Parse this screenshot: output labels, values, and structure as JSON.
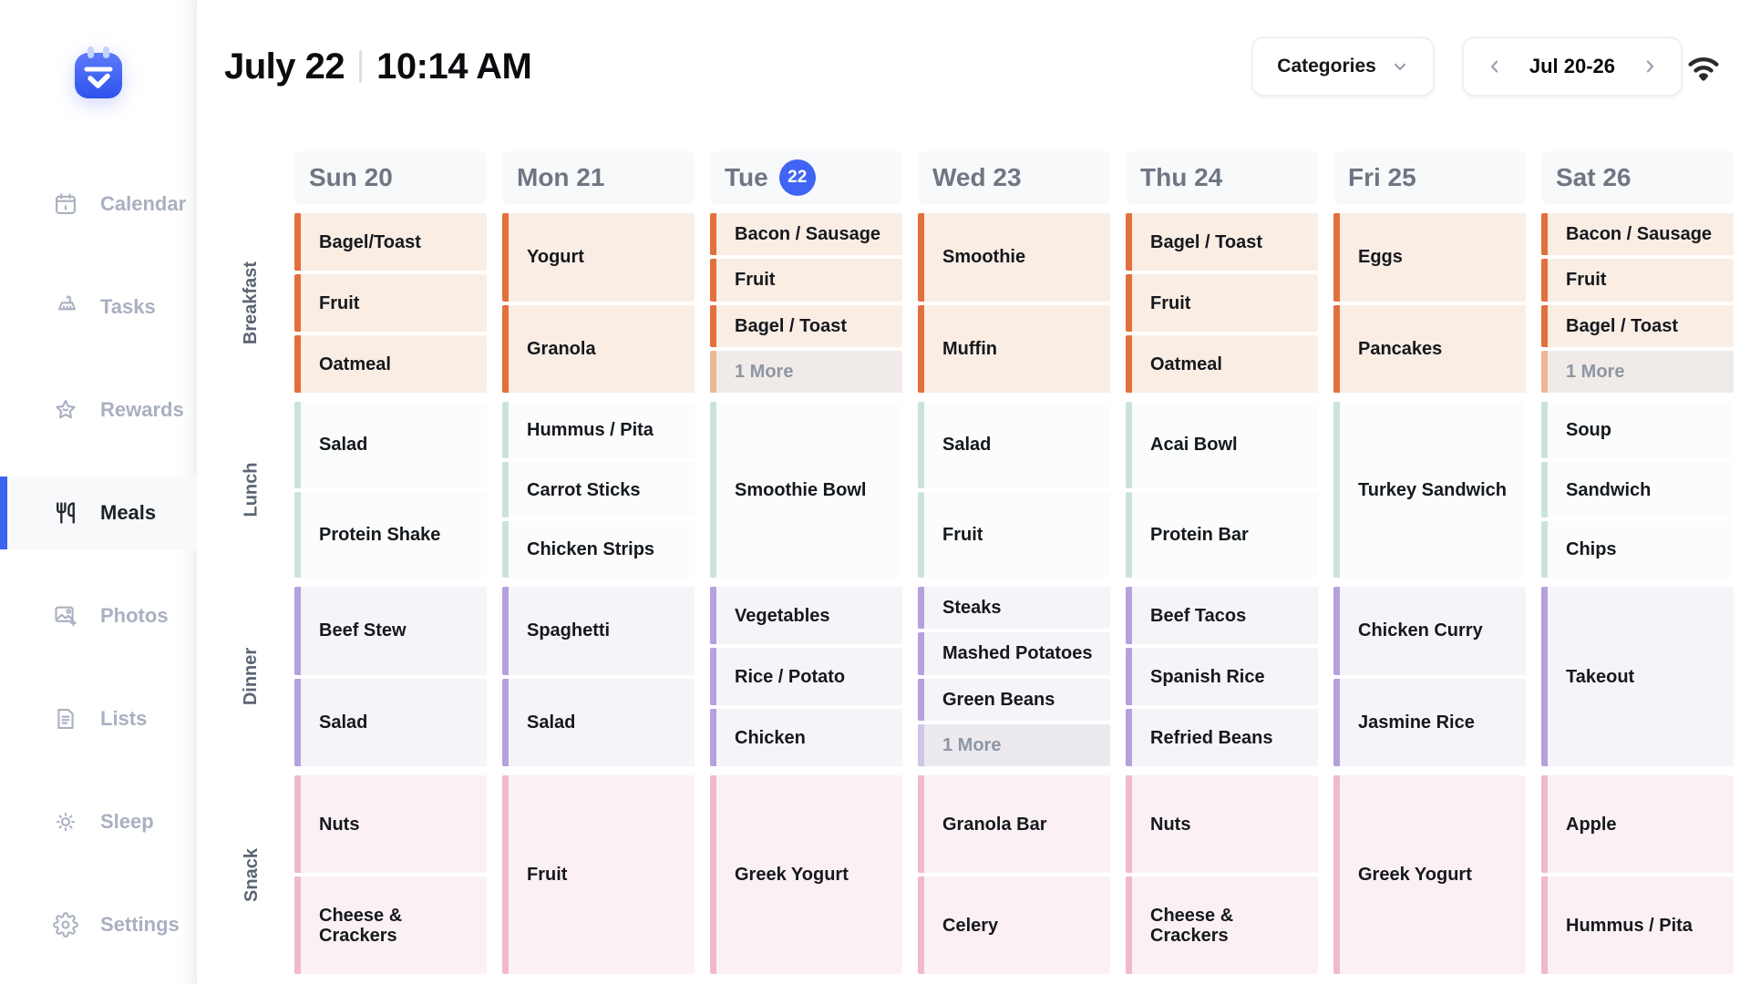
{
  "sidebar": {
    "items": [
      {
        "label": "Calendar",
        "icon": "calendar-icon",
        "active": false
      },
      {
        "label": "Tasks",
        "icon": "broom-icon",
        "active": false
      },
      {
        "label": "Rewards",
        "icon": "star-icon",
        "active": false
      },
      {
        "label": "Meals",
        "icon": "utensils-icon",
        "active": true
      },
      {
        "label": "Photos",
        "icon": "photo-add-icon",
        "active": false
      },
      {
        "label": "Lists",
        "icon": "document-icon",
        "active": false
      },
      {
        "label": "Sleep",
        "icon": "sun-icon",
        "active": false
      },
      {
        "label": "Settings",
        "icon": "gear-icon",
        "active": false
      }
    ]
  },
  "header": {
    "date": "July 22",
    "time": "10:14 AM",
    "categories_label": "Categories",
    "week_range": "Jul 20-26"
  },
  "colors": {
    "active_blue": "#3D63F2",
    "badge_blue": "#4064F4",
    "breakfast_accent": "#E2703C",
    "breakfast_bg": "#FAEDE4",
    "lunch_accent": "#CBE3DF",
    "lunch_bg": "#FBFCFC",
    "dinner_accent": "#B5A1DC",
    "dinner_bg": "#F6F4F9",
    "snack_accent": "#F0BAC9",
    "snack_bg": "#FBF1F4",
    "more_text": "#8E96A3"
  },
  "calendar": {
    "days": [
      {
        "label": "Sun 20"
      },
      {
        "label": "Mon 21"
      },
      {
        "label": "Tue",
        "badge": "22"
      },
      {
        "label": "Wed 23"
      },
      {
        "label": "Thu 24"
      },
      {
        "label": "Fri 25"
      },
      {
        "label": "Sat 26"
      }
    ],
    "rows": [
      {
        "name": "Breakfast",
        "accent": "#E2703C",
        "bg": "#FAEDE4",
        "moreAccent": "#ECB795",
        "moreBg": "#F0EBE8",
        "cells": [
          [
            {
              "label": "Bagel/Toast"
            },
            {
              "label": "Fruit"
            },
            {
              "label": "Oatmeal"
            }
          ],
          [
            {
              "label": "Yogurt"
            },
            {
              "label": "Granola"
            }
          ],
          [
            {
              "label": "Bacon / Sausage"
            },
            {
              "label": "Fruit"
            },
            {
              "label": "Bagel / Toast"
            },
            {
              "label": "1 More",
              "more": true
            }
          ],
          [
            {
              "label": "Smoothie"
            },
            {
              "label": "Muffin"
            }
          ],
          [
            {
              "label": "Bagel / Toast"
            },
            {
              "label": "Fruit"
            },
            {
              "label": "Oatmeal"
            }
          ],
          [
            {
              "label": "Eggs"
            },
            {
              "label": "Pancakes"
            }
          ],
          [
            {
              "label": "Bacon / Sausage"
            },
            {
              "label": "Fruit"
            },
            {
              "label": "Bagel / Toast"
            },
            {
              "label": "1 More",
              "more": true
            }
          ]
        ]
      },
      {
        "name": "Lunch",
        "accent": "#CBE3DF",
        "bg": "#FBFCFC",
        "moreAccent": "#DDEAE8",
        "moreBg": "#EDEFEF",
        "cells": [
          [
            {
              "label": "Salad"
            },
            {
              "label": "Protein Shake"
            }
          ],
          [
            {
              "label": "Hummus / Pita"
            },
            {
              "label": "Carrot Sticks"
            },
            {
              "label": "Chicken Strips"
            }
          ],
          [
            {
              "label": "Smoothie Bowl"
            }
          ],
          [
            {
              "label": "Salad"
            },
            {
              "label": "Fruit"
            }
          ],
          [
            {
              "label": "Acai Bowl"
            },
            {
              "label": "Protein Bar"
            }
          ],
          [
            {
              "label": "Turkey Sandwich"
            }
          ],
          [
            {
              "label": "Soup"
            },
            {
              "label": "Sandwich"
            },
            {
              "label": "Chips"
            }
          ]
        ]
      },
      {
        "name": "Dinner",
        "accent": "#B5A1DC",
        "bg": "#F6F4F9",
        "moreAccent": "#D0C5E6",
        "moreBg": "#ECEAEF",
        "cells": [
          [
            {
              "label": "Beef Stew"
            },
            {
              "label": "Salad"
            }
          ],
          [
            {
              "label": "Spaghetti"
            },
            {
              "label": "Salad"
            }
          ],
          [
            {
              "label": "Vegetables"
            },
            {
              "label": "Rice / Potato"
            },
            {
              "label": "Chicken"
            }
          ],
          [
            {
              "label": "Steaks"
            },
            {
              "label": "Mashed Potatoes"
            },
            {
              "label": "Green Beans"
            },
            {
              "label": "1 More",
              "more": true
            }
          ],
          [
            {
              "label": "Beef Tacos"
            },
            {
              "label": "Spanish Rice"
            },
            {
              "label": "Refried Beans"
            }
          ],
          [
            {
              "label": "Chicken Curry"
            },
            {
              "label": "Jasmine Rice"
            }
          ],
          [
            {
              "label": "Takeout"
            }
          ]
        ]
      },
      {
        "name": "Snack",
        "accent": "#F0BAC9",
        "bg": "#FBF1F4",
        "moreAccent": "#F5D3DC",
        "moreBg": "#F0ECEE",
        "cells": [
          [
            {
              "label": "Nuts"
            },
            {
              "label": "Cheese & Crackers"
            }
          ],
          [
            {
              "label": "Fruit"
            }
          ],
          [
            {
              "label": "Greek Yogurt"
            }
          ],
          [
            {
              "label": "Granola Bar"
            },
            {
              "label": "Celery"
            }
          ],
          [
            {
              "label": "Nuts"
            },
            {
              "label": "Cheese & Crackers"
            }
          ],
          [
            {
              "label": "Greek Yogurt"
            }
          ],
          [
            {
              "label": "Apple"
            },
            {
              "label": "Hummus / Pita"
            }
          ]
        ]
      }
    ]
  }
}
